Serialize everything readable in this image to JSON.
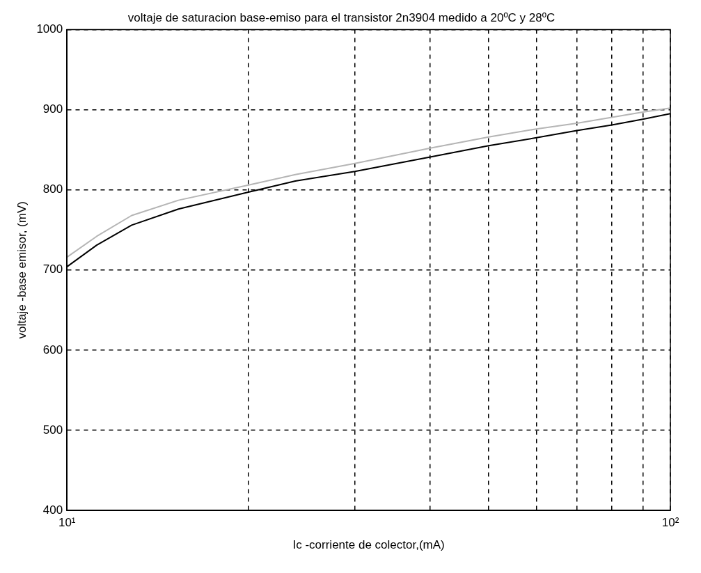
{
  "chart_data": {
    "type": "line",
    "title": "voltaje de saturacion base-emiso para el transistor 2n3904 medido a 20ºC y 28ºC",
    "xlabel": "Ic -corriente de colector,(mA)",
    "ylabel": "voltaje -base emisor, (mV)",
    "log": "x",
    "grid": true,
    "legend": false,
    "marker": "none",
    "line_style": "solid",
    "xlim": [
      10,
      100
    ],
    "xticks": [
      {
        "value": 10,
        "label": "10¹"
      },
      {
        "value": 20,
        "label": null
      },
      {
        "value": 30,
        "label": null
      },
      {
        "value": 40,
        "label": null
      },
      {
        "value": 50,
        "label": null
      },
      {
        "value": 60,
        "label": null
      },
      {
        "value": 70,
        "label": null
      },
      {
        "value": 80,
        "label": null
      },
      {
        "value": 90,
        "label": null
      },
      {
        "value": 100,
        "label": "10²"
      }
    ],
    "ylim": [
      400,
      1000
    ],
    "yticks": [
      400,
      500,
      600,
      700,
      800,
      900,
      1000
    ],
    "series": [
      {
        "color": "#b5b5b5",
        "x": [
          10,
          11.2,
          12.8,
          15.3,
          20,
          23.9,
          30,
          40,
          50,
          60,
          70,
          90,
          100
        ],
        "values": [
          716,
          742,
          768,
          787,
          806,
          819,
          833,
          852,
          866,
          876,
          883,
          897,
          902
        ]
      },
      {
        "color": "#000000",
        "x": [
          10,
          11.2,
          12.8,
          15.3,
          19.7,
          23.9,
          30,
          40,
          50,
          60,
          70,
          80,
          90,
          100
        ],
        "values": [
          704,
          731,
          756,
          776,
          796,
          811,
          823,
          841,
          855,
          865,
          874,
          881,
          888,
          895
        ]
      }
    ]
  }
}
